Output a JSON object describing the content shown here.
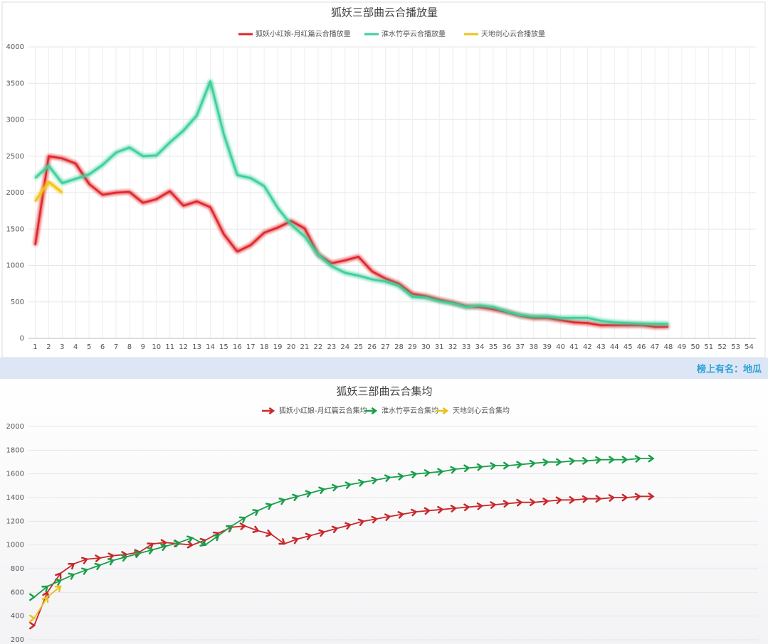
{
  "chart_data": [
    {
      "type": "line",
      "title": "狐妖三部曲云合播放量",
      "categories": [
        "1",
        "2",
        "3",
        "4",
        "5",
        "6",
        "7",
        "8",
        "9",
        "10",
        "11",
        "12",
        "13",
        "14",
        "15",
        "16",
        "17",
        "18",
        "19",
        "20",
        "21",
        "22",
        "23",
        "24",
        "25",
        "26",
        "27",
        "28",
        "29",
        "30",
        "31",
        "32",
        "33",
        "34",
        "35",
        "36",
        "37",
        "38",
        "39",
        "40",
        "41",
        "42",
        "43",
        "44",
        "45",
        "46",
        "47",
        "48",
        "49",
        "50",
        "51",
        "52",
        "53",
        "54"
      ],
      "ylim": [
        0,
        4000
      ],
      "yticks": [
        0,
        500,
        1000,
        1500,
        2000,
        2500,
        3000,
        3500,
        4000
      ],
      "grid": true,
      "series": [
        {
          "name": "狐妖小红娘-月红篇云合播放量",
          "color": "#e0262c",
          "values": [
            1280,
            2500,
            2470,
            2400,
            2120,
            1970,
            2000,
            2010,
            1860,
            1910,
            2020,
            1820,
            1880,
            1800,
            1430,
            1190,
            1280,
            1450,
            1520,
            1610,
            1510,
            1150,
            1030,
            1070,
            1120,
            920,
            820,
            750,
            610,
            580,
            530,
            490,
            440,
            430,
            400,
            360,
            310,
            280,
            280,
            250,
            220,
            210,
            180,
            180,
            180,
            180,
            160,
            160,
            null,
            null,
            null,
            null,
            null,
            null
          ]
        },
        {
          "name": "淮水竹亭云合播放量",
          "color": "#3ecf9a",
          "values": [
            2200,
            2370,
            2130,
            2190,
            2250,
            2380,
            2550,
            2620,
            2500,
            2510,
            2690,
            2850,
            3060,
            3530,
            2800,
            2240,
            2200,
            2090,
            1790,
            1560,
            1400,
            1150,
            990,
            900,
            860,
            810,
            780,
            720,
            570,
            560,
            510,
            480,
            430,
            450,
            430,
            370,
            320,
            300,
            300,
            280,
            280,
            280,
            240,
            220,
            210,
            200,
            200,
            200,
            null,
            null,
            null,
            null,
            null,
            null
          ]
        },
        {
          "name": "天地剑心云合播放量",
          "color": "#f0c419",
          "values": [
            1880,
            2150,
            2000,
            null,
            null,
            null,
            null,
            null,
            null,
            null,
            null,
            null,
            null,
            null,
            null,
            null,
            null,
            null,
            null,
            null,
            null,
            null,
            null,
            null,
            null,
            null,
            null,
            null,
            null,
            null,
            null,
            null,
            null,
            null,
            null,
            null,
            null,
            null,
            null,
            null,
            null,
            null,
            null,
            null,
            null,
            null,
            null,
            null,
            null,
            null,
            null,
            null,
            null,
            null
          ]
        }
      ]
    },
    {
      "type": "arrow-line",
      "title": "狐妖三部曲云合集均",
      "ylim": [
        200,
        2000
      ],
      "yticks": [
        200,
        400,
        600,
        800,
        1000,
        1200,
        1400,
        1600,
        1800,
        2000
      ],
      "grid": true,
      "series": [
        {
          "name": "狐妖小红娘-月红篇云合集均",
          "color": "#c8282b",
          "values": [
            320,
            600,
            760,
            840,
            880,
            890,
            910,
            920,
            940,
            1010,
            1020,
            1010,
            1000,
            1040,
            1100,
            1150,
            1160,
            1120,
            1090,
            1010,
            1050,
            1080,
            1110,
            1140,
            1170,
            1200,
            1220,
            1240,
            1260,
            1280,
            1290,
            1300,
            1310,
            1320,
            1330,
            1340,
            1350,
            1360,
            1360,
            1370,
            1380,
            1380,
            1390,
            1390,
            1400,
            1400,
            1410,
            1410
          ]
        },
        {
          "name": "淮水竹亭云合集均",
          "color": "#1a9e4a",
          "values": [
            560,
            650,
            700,
            750,
            790,
            830,
            870,
            900,
            930,
            960,
            990,
            1020,
            1060,
            1000,
            1080,
            1160,
            1230,
            1290,
            1340,
            1380,
            1410,
            1440,
            1470,
            1490,
            1510,
            1530,
            1550,
            1570,
            1580,
            1600,
            1610,
            1620,
            1640,
            1650,
            1660,
            1670,
            1670,
            1680,
            1690,
            1700,
            1700,
            1710,
            1710,
            1720,
            1720,
            1720,
            1730,
            1730
          ]
        },
        {
          "name": "天地剑心云合集均",
          "color": "#e8c21a",
          "values": [
            380,
            560,
            650
          ]
        }
      ]
    }
  ],
  "banner": "榜上有名：地瓜"
}
